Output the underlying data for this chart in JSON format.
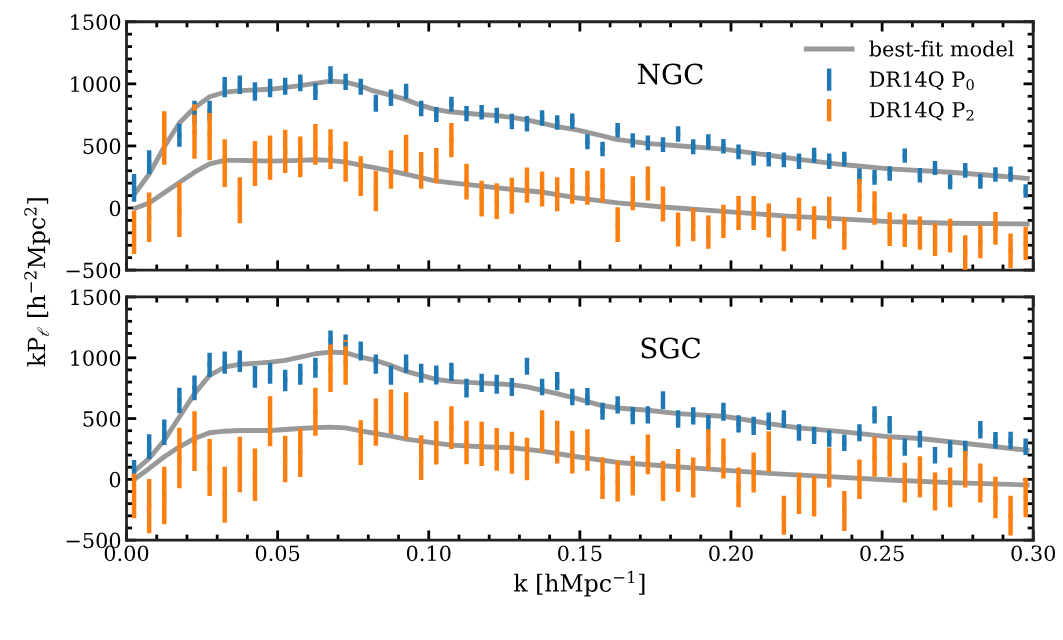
{
  "chart_data": [
    {
      "type": "scatter",
      "ylabel": "kP$_{ℓ}$ [h$^{−2}$Mpc$^{2}$]",
      "annotations": [
        "NGC"
      ],
      "xlim": [
        0,
        0.3
      ],
      "ylim": [
        -500,
        1500
      ],
      "xticks": [
        {
          "value": 0,
          "label": null
        },
        {
          "value": 0.05,
          "label": null
        },
        {
          "value": 0.1,
          "label": null
        },
        {
          "value": 0.15,
          "label": null
        },
        {
          "value": 0.2,
          "label": null
        },
        {
          "value": 0.25,
          "label": null
        },
        {
          "value": 0.3,
          "label": null
        }
      ],
      "yticks": [
        {
          "value": -500,
          "label": "−500"
        },
        0,
        500,
        1000,
        1500
      ],
      "tick_labels": "y",
      "grid": false,
      "legend": "top right",
      "marker": "none",
      "x": [
        0.0025,
        0.0075,
        0.0125,
        0.0175,
        0.0225,
        0.0275,
        0.0325,
        0.0375,
        0.0425,
        0.0475,
        0.0525,
        0.0575,
        0.0625,
        0.0675,
        0.0725,
        0.0775,
        0.0825,
        0.0875,
        0.0925,
        0.0975,
        0.1025,
        0.1075,
        0.1125,
        0.1175,
        0.1225,
        0.1275,
        0.1325,
        0.1375,
        0.1425,
        0.1475,
        0.1525,
        0.1575,
        0.1625,
        0.1675,
        0.1725,
        0.1775,
        0.1825,
        0.1875,
        0.1925,
        0.1975,
        0.2025,
        0.2075,
        0.2125,
        0.2175,
        0.2225,
        0.2275,
        0.2325,
        0.2375,
        0.2425,
        0.2475,
        0.2525,
        0.2575,
        0.2625,
        0.2675,
        0.2725,
        0.2775,
        0.2825,
        0.2875,
        0.2925,
        0.2975
      ],
      "series": [
        {
          "name": "best-fit model",
          "type": "line",
          "color": "#999999",
          "x": [
            0.003,
            0.0075,
            0.0125,
            0.0175,
            0.0225,
            0.0275,
            0.0325,
            0.0375,
            0.0475,
            0.0575,
            0.0675,
            0.0725,
            0.077,
            0.0815,
            0.087,
            0.092,
            0.097,
            0.102,
            0.107,
            0.117,
            0.122,
            0.127,
            0.132,
            0.137,
            0.142,
            0.149,
            0.157,
            0.162,
            0.172,
            0.1825,
            0.1975,
            0.2125,
            0.2225,
            0.2375,
            0.2525,
            0.2725,
            0.2875,
            0.298
          ],
          "values": [
            123,
            274,
            493,
            685,
            808,
            896,
            932,
            945,
            956,
            986,
            1022,
            1014,
            986,
            945,
            912,
            877,
            830,
            795,
            775,
            753,
            745,
            732,
            712,
            685,
            658,
            630,
            584,
            553,
            521,
            501,
            474,
            425,
            392,
            348,
            315,
            288,
            260,
            238
          ]
        },
        {
          "type": "line",
          "color": "#999999",
          "x": [
            0.003,
            0.0075,
            0.0125,
            0.0175,
            0.0225,
            0.0275,
            0.0325,
            0.0375,
            0.0475,
            0.0575,
            0.0625,
            0.0675,
            0.0725,
            0.077,
            0.082,
            0.087,
            0.092,
            0.097,
            0.102,
            0.107,
            0.117,
            0.127,
            0.137,
            0.142,
            0.149,
            0.1625,
            0.1775,
            0.1975,
            0.2175,
            0.2375,
            0.2525,
            0.2725,
            0.298
          ],
          "values": [
            0,
            41,
            123,
            205,
            288,
            356,
            384,
            384,
            378,
            384,
            389,
            384,
            370,
            348,
            326,
            301,
            274,
            247,
            219,
            205,
            178,
            151,
            129,
            110,
            82,
            41,
            8,
            -27,
            -63,
            -90,
            -110,
            -123,
            -129
          ]
        },
        {
          "name": "DR14Q P$_{0}$",
          "marker": "square",
          "color": "#1f77b4",
          "values": [
            162,
            370,
            null,
            586,
            767,
            781,
            973,
            993,
            938,
            966,
            981,
            1008,
            937,
            1071,
            1016,
            977,
            844,
            888,
            938,
            801,
            753,
            836,
            760,
            771,
            745,
            697,
            678,
            725,
            689,
            699,
            534,
            475,
            626,
            545,
            525,
            511,
            596,
            493,
            534,
            497,
            452,
            400,
            393,
            388,
            377,
            425,
            377,
            395,
            260,
            247,
            278,
            422,
            264,
            322,
            210,
            303,
            215,
            270,
            273,
            137
          ],
          "errors": [
            112,
            96,
            null,
            93,
            96,
            82,
            82,
            75,
            75,
            75,
            68,
            68,
            68,
            71,
            66,
            64,
            68,
            66,
            62,
            62,
            60,
            60,
            62,
            59,
            63,
            62,
            62,
            62,
            59,
            63,
            60,
            59,
            59,
            58,
            59,
            59,
            62,
            60,
            60,
            59,
            60,
            58,
            59,
            59,
            62,
            60,
            62,
            58,
            60,
            60,
            59,
            58,
            59,
            56,
            59,
            59,
            59,
            59,
            62,
            55
          ]
        },
        {
          "name": "DR14Q P$_{2}$",
          "marker": "square",
          "color": "#ff7f0e",
          "values": [
            -196,
            -75,
            564,
            -14,
            616,
            589,
            362,
            62,
            359,
            405,
            456,
            411,
            512,
            475,
            373,
            256,
            137,
            311,
            438,
            304,
            342,
            547,
            212,
            75,
            56,
            99,
            184,
            153,
            110,
            179,
            164,
            184,
            -134,
            118,
            197,
            32,
            -173,
            -134,
            -195,
            -107,
            -41,
            -41,
            -101,
            -208,
            -51,
            -119,
            -38,
            -207,
            100,
            0,
            -171,
            -181,
            -203,
            -255,
            -223,
            -360,
            -271,
            -164,
            -345,
            -285
          ],
          "errors": [
            174,
            199,
            216,
            219,
            219,
            205,
            192,
            185,
            181,
            178,
            174,
            164,
            164,
            160,
            162,
            160,
            164,
            155,
            151,
            148,
            142,
            138,
            144,
            144,
            144,
            145,
            142,
            140,
            137,
            144,
            137,
            137,
            140,
            137,
            137,
            141,
            137,
            134,
            134,
            134,
            137,
            137,
            137,
            140,
            133,
            133,
            129,
            130,
            133,
            134,
            136,
            134,
            134,
            132,
            136,
            140,
            134,
            131,
            140,
            134
          ]
        }
      ]
    },
    {
      "type": "scatter",
      "xlabel": "k [hMpc$^{−1}$]",
      "annotations": [
        "SGC"
      ],
      "xlim": [
        0,
        0.3
      ],
      "ylim": [
        -500,
        1500
      ],
      "xticks": [
        {
          "value": 0,
          "label": "0.00"
        },
        {
          "value": 0.05,
          "label": "0.05"
        },
        {
          "value": 0.1,
          "label": "0.10"
        },
        {
          "value": 0.15,
          "label": "0.15"
        },
        {
          "value": 0.2,
          "label": "0.20"
        },
        {
          "value": 0.25,
          "label": "0.25"
        },
        {
          "value": 0.3,
          "label": "0.30"
        }
      ],
      "yticks": [
        {
          "value": -500,
          "label": "−500"
        },
        0,
        500,
        1000,
        1500
      ],
      "grid": false,
      "marker": "none",
      "x": [
        0.0025,
        0.0075,
        0.0125,
        0.0175,
        0.0225,
        0.0275,
        0.0325,
        0.0375,
        0.0425,
        0.0475,
        0.0525,
        0.0575,
        0.0625,
        0.0675,
        0.0725,
        0.0775,
        0.0825,
        0.0875,
        0.0925,
        0.0975,
        0.1025,
        0.1075,
        0.1125,
        0.1175,
        0.1225,
        0.1275,
        0.1325,
        0.1375,
        0.1425,
        0.1475,
        0.1525,
        0.1575,
        0.1625,
        0.1675,
        0.1725,
        0.1775,
        0.1825,
        0.1875,
        0.1925,
        0.1975,
        0.2025,
        0.2075,
        0.2125,
        0.2175,
        0.2225,
        0.2275,
        0.2325,
        0.2375,
        0.2425,
        0.2475,
        0.2525,
        0.2575,
        0.2625,
        0.2675,
        0.2725,
        0.2775,
        0.2825,
        0.2875,
        0.2925,
        0.2975
      ],
      "series": [
        {
          "type": "line",
          "color": "#999999",
          "x": [
            0.003,
            0.0075,
            0.0125,
            0.0175,
            0.0225,
            0.0275,
            0.0325,
            0.0375,
            0.0475,
            0.0525,
            0.0575,
            0.0625,
            0.0675,
            0.0725,
            0.0775,
            0.0825,
            0.0875,
            0.0925,
            0.0975,
            0.1025,
            0.1075,
            0.1175,
            0.1275,
            0.1325,
            0.1375,
            0.1425,
            0.149,
            0.157,
            0.1625,
            0.1725,
            0.1825,
            0.1975,
            0.2125,
            0.2225,
            0.2375,
            0.2525,
            0.2625,
            0.2725,
            0.2875,
            0.298
          ],
          "values": [
            77,
            172,
            322,
            514,
            705,
            855,
            924,
            945,
            964,
            978,
            1005,
            1033,
            1046,
            1041,
            1005,
            978,
            937,
            888,
            855,
            822,
            806,
            792,
            779,
            760,
            732,
            705,
            664,
            609,
            587,
            568,
            541,
            519,
            459,
            423,
            391,
            350,
            336,
            309,
            268,
            240
          ]
        },
        {
          "type": "line",
          "color": "#999999",
          "x": [
            0.003,
            0.0075,
            0.0125,
            0.0175,
            0.0225,
            0.0275,
            0.0325,
            0.0375,
            0.0475,
            0.0575,
            0.0625,
            0.0675,
            0.0725,
            0.0775,
            0.0825,
            0.0875,
            0.0925,
            0.0975,
            0.1025,
            0.1075,
            0.1175,
            0.1275,
            0.1375,
            0.149,
            0.1625,
            0.1775,
            0.1975,
            0.2125,
            0.2325,
            0.2525,
            0.2725,
            0.298
          ],
          "values": [
            8,
            90,
            186,
            268,
            336,
            383,
            396,
            402,
            402,
            418,
            426,
            429,
            423,
            399,
            377,
            355,
            331,
            314,
            298,
            281,
            268,
            260,
            232,
            186,
            139,
            112,
            76,
            49,
            22,
            -5,
            -27,
            -46
          ]
        },
        {
          "marker": "square",
          "color": "#1f77b4",
          "values": [
            85,
            269,
            387,
            650,
            753,
            941,
            960,
            971,
            843,
            873,
            813,
            865,
            918,
            1142,
            1112,
            1056,
            948,
            858,
            952,
            873,
            859,
            884,
            751,
            794,
            783,
            760,
            930,
            760,
            807,
            678,
            680,
            561,
            612,
            525,
            530,
            650,
            496,
            522,
            467,
            555,
            456,
            439,
            477,
            496,
            385,
            361,
            336,
            301,
            384,
            530,
            449,
            265,
            331,
            199,
            251,
            251,
            408,
            322,
            320,
            268
          ],
          "errors": [
            75,
            102,
            105,
            104,
            102,
            100,
            92,
            89,
            89,
            86,
            89,
            86,
            82,
            82,
            79,
            78,
            79,
            79,
            75,
            78,
            78,
            75,
            77,
            75,
            78,
            74,
            70,
            68,
            75,
            68,
            71,
            70,
            71,
            71,
            71,
            74,
            72,
            71,
            62,
            74,
            71,
            75,
            72,
            72,
            68,
            71,
            68,
            68,
            70,
            71,
            72,
            71,
            68,
            68,
            71,
            66,
            72,
            68,
            71,
            68
          ]
        },
        {
          "marker": "square",
          "color": "#ff7f0e",
          "values": [
            -135,
            -220,
            -133,
            175,
            314,
            97,
            -126,
            122,
            38,
            478,
            167,
            219,
            556,
            914,
            963,
            302,
            470,
            555,
            523,
            179,
            301,
            425,
            303,
            291,
            247,
            219,
            167,
            395,
            306,
            224,
            242,
            10,
            -15,
            31,
            205,
            -14,
            74,
            15,
            245,
            172,
            -66,
            56,
            227,
            -295,
            -115,
            -139,
            98,
            -260,
            1,
            186,
            183,
            -27,
            22,
            -100,
            -66,
            98,
            -30,
            -149,
            -298,
            -149
          ],
          "errors": [
            184,
            223,
            236,
            249,
            246,
            234,
            230,
            228,
            216,
            205,
            191,
            199,
            198,
            195,
            184,
            184,
            194,
            183,
            193,
            184,
            178,
            176,
            178,
            182,
            176,
            172,
            175,
            173,
            175,
            175,
            171,
            171,
            168,
            163,
            164,
            164,
            175,
            165,
            168,
            164,
            164,
            165,
            169,
            161,
            169,
            167,
            164,
            164,
            163,
            164,
            161,
            164,
            169,
            157,
            164,
            164,
            161,
            171,
            164,
            163
          ]
        }
      ]
    }
  ]
}
